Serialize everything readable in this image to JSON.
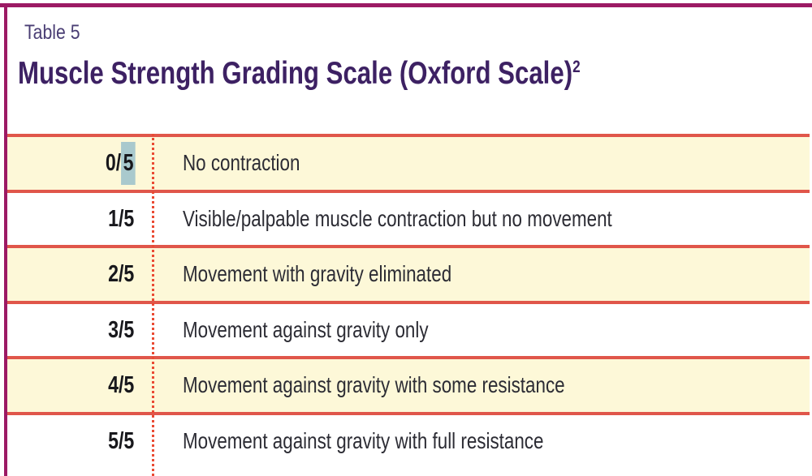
{
  "document": {
    "label": "Table 5",
    "title": "Muscle Strength Grading Scale (Oxford Scale)",
    "title_superscript": "2"
  },
  "table": {
    "rows": [
      {
        "grade_prefix": "0/",
        "grade_marked": "5",
        "description": "No contraction",
        "shaded": true
      },
      {
        "grade_prefix": "1/5",
        "grade_marked": "",
        "description": "Visible/palpable muscle contraction but no movement",
        "shaded": false
      },
      {
        "grade_prefix": "2/5",
        "grade_marked": "",
        "description": "Movement with gravity eliminated",
        "shaded": true
      },
      {
        "grade_prefix": "3/5",
        "grade_marked": "",
        "description": "Movement against gravity only",
        "shaded": false
      },
      {
        "grade_prefix": "4/5",
        "grade_marked": "",
        "description": "Movement against gravity with some resistance",
        "shaded": true
      },
      {
        "grade_prefix": "5/5",
        "grade_marked": "",
        "description": "Movement against gravity with full resistance",
        "shaded": false
      }
    ]
  },
  "colors": {
    "frame_border": "#9c1a64",
    "row_divider": "#e0564a",
    "dotted_divider": "#ea4a33",
    "shaded_row_bg": "#fdf8d8",
    "highlight": "#a9c9cd",
    "title_text": "#3d2163",
    "label_text": "#4a3e74",
    "body_text": "#2c2c34",
    "grade_text": "#18181c"
  }
}
